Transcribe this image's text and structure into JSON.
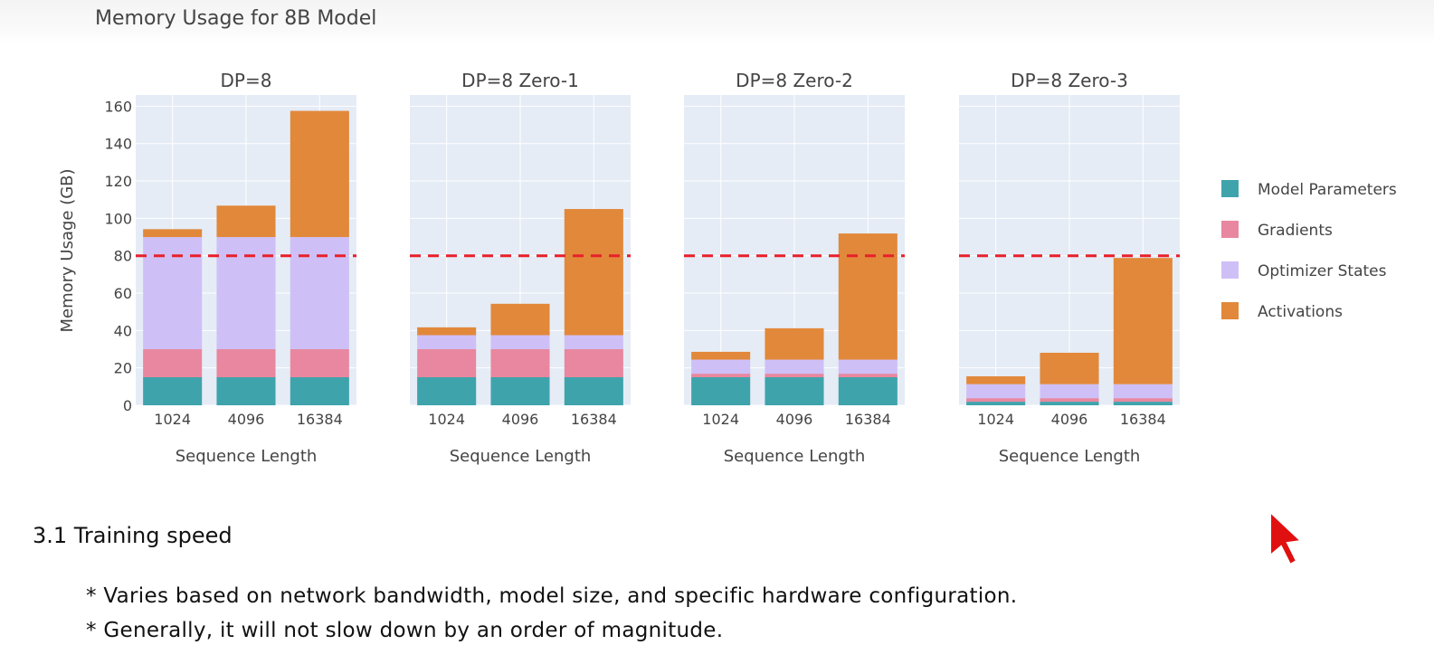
{
  "chart_data": {
    "type": "bar",
    "stacked": true,
    "title": "Memory Usage for 8B Model",
    "ylabel": "Memory Usage (GB)",
    "ylim": [
      0,
      166
    ],
    "yticks": [
      0,
      20,
      40,
      60,
      80,
      100,
      120,
      140,
      160
    ],
    "grid": true,
    "legend_position": "right",
    "reference_line": {
      "y": 80,
      "color": "#e8202a",
      "style": "dashed"
    },
    "categories": [
      "1024",
      "4096",
      "16384"
    ],
    "legend": [
      {
        "name": "Model Parameters",
        "color": "#3fa3ac"
      },
      {
        "name": "Gradients",
        "color": "#e8879f"
      },
      {
        "name": "Optimizer States",
        "color": "#cfbff7"
      },
      {
        "name": "Activations",
        "color": "#e2883a"
      }
    ],
    "panels": [
      {
        "title": "DP=8",
        "xlabel": "Sequence Length",
        "series": [
          {
            "name": "Model Parameters",
            "values": [
              15,
              15,
              15
            ]
          },
          {
            "name": "Gradients",
            "values": [
              15,
              15,
              15
            ]
          },
          {
            "name": "Optimizer States",
            "values": [
              60,
              60,
              60
            ]
          },
          {
            "name": "Activations",
            "values": [
              4.2,
              16.8,
              67.5
            ]
          }
        ]
      },
      {
        "title": "DP=8 Zero-1",
        "xlabel": "Sequence Length",
        "series": [
          {
            "name": "Model Parameters",
            "values": [
              15,
              15,
              15
            ]
          },
          {
            "name": "Gradients",
            "values": [
              15,
              15,
              15
            ]
          },
          {
            "name": "Optimizer States",
            "values": [
              7.5,
              7.5,
              7.5
            ]
          },
          {
            "name": "Activations",
            "values": [
              4.2,
              16.8,
              67.5
            ]
          }
        ]
      },
      {
        "title": "DP=8 Zero-2",
        "xlabel": "Sequence Length",
        "series": [
          {
            "name": "Model Parameters",
            "values": [
              15,
              15,
              15
            ]
          },
          {
            "name": "Gradients",
            "values": [
              1.9,
              1.9,
              1.9
            ]
          },
          {
            "name": "Optimizer States",
            "values": [
              7.5,
              7.5,
              7.5
            ]
          },
          {
            "name": "Activations",
            "values": [
              4.2,
              16.8,
              67.5
            ]
          }
        ]
      },
      {
        "title": "DP=8 Zero-3",
        "xlabel": "Sequence Length",
        "series": [
          {
            "name": "Model Parameters",
            "values": [
              1.9,
              1.9,
              1.9
            ]
          },
          {
            "name": "Gradients",
            "values": [
              1.9,
              1.9,
              1.9
            ]
          },
          {
            "name": "Optimizer States",
            "values": [
              7.5,
              7.5,
              7.5
            ]
          },
          {
            "name": "Activations",
            "values": [
              4.2,
              16.8,
              67.5
            ]
          }
        ]
      }
    ]
  },
  "notes": {
    "heading": "3.1 Training speed",
    "bullets": [
      "* Varies based on network bandwidth, model size, and specific hardware configuration.",
      "* Generally, it will not slow down by an order of magnitude."
    ]
  }
}
